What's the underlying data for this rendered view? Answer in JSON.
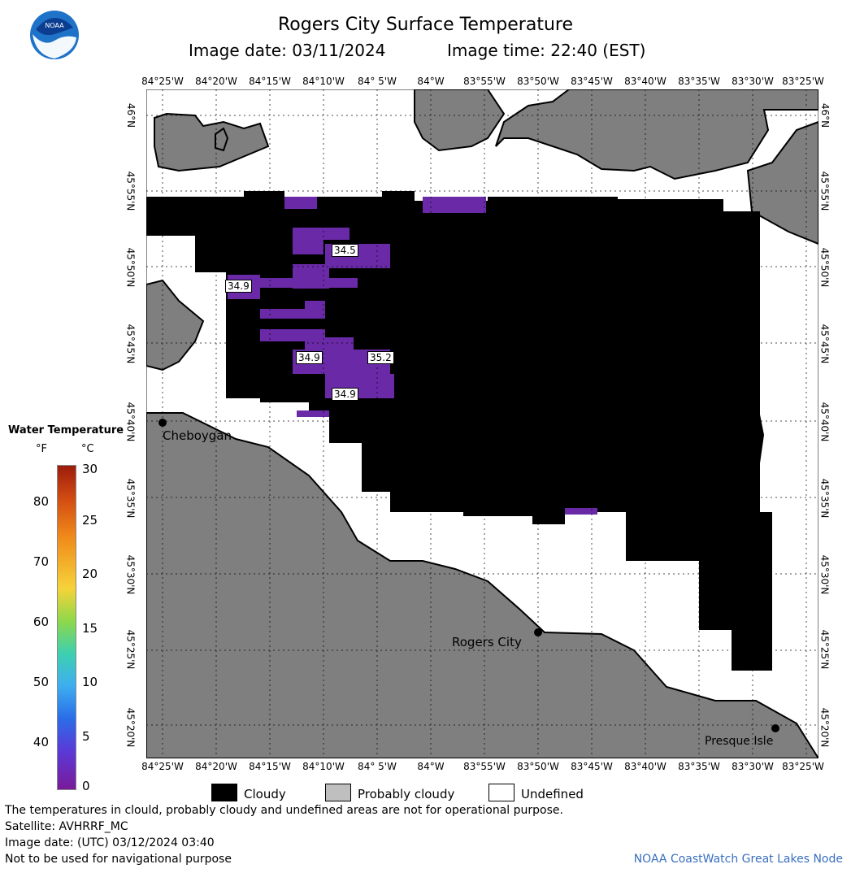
{
  "title": "Rogers City Surface Temperature",
  "image_date_label": "Image date: 03/11/2024",
  "image_time_label": "Image time: 22:40 (EST)",
  "logo_text": "NOAA",
  "longitudes": [
    "84°25'W",
    "84°20'W",
    "84°15'W",
    "84°10'W",
    "84° 5'W",
    "84°W",
    "83°55'W",
    "83°50'W",
    "83°45'W",
    "83°40'W",
    "83°35'W",
    "83°30'W",
    "83°25'W"
  ],
  "latitudes": [
    "46°N",
    "45°55'N",
    "45°50'N",
    "45°45'N",
    "45°40'N",
    "45°35'N",
    "45°30'N",
    "45°25'N",
    "45°20'N"
  ],
  "places": {
    "cheboygan": "Cheboygan",
    "rogers_city": "Rogers City",
    "presque_isle": "Presque Isle"
  },
  "temperature_labels": [
    "34.5",
    "34.9",
    "34.9",
    "35.2",
    "34.9"
  ],
  "legend": {
    "title": "Water Temperature",
    "unit_f": "°F",
    "unit_c": "°C",
    "fahrenheit_ticks": [
      "80",
      "70",
      "60",
      "50",
      "40"
    ],
    "celsius_ticks": [
      "30",
      "25",
      "20",
      "15",
      "10",
      "5",
      "0"
    ]
  },
  "key": {
    "cloudy": "Cloudy",
    "probably_cloudy": "Probably cloudy",
    "undefined": "Undefined"
  },
  "colors": {
    "land": "#7f7f7f",
    "cloudy": "#000000",
    "probably_cloudy": "#bfbfbf",
    "undefined": "#ffffff",
    "water_temp": "#6a2aa8"
  },
  "footer": {
    "line1": "The temperatures in clould, probably cloudy and undefined areas are not for operational purpose.",
    "line2": "Satellite: AVHRRF_MC",
    "line3": "Image date: (UTC) 03/12/2024  03:40",
    "line4": "Not to be used for navigational purpose",
    "credit": "NOAA CoastWatch Great Lakes Node"
  }
}
